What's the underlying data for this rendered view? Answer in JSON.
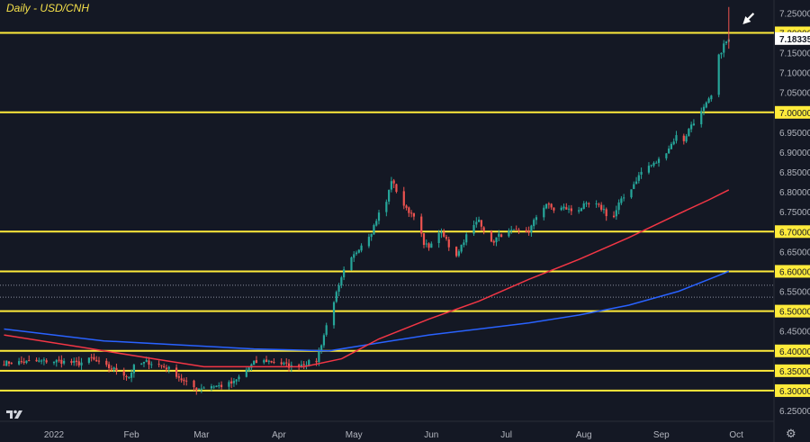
{
  "title": "Daily - USD/CNH",
  "colors": {
    "background": "#141824",
    "up": "#26a69a",
    "down": "#ef5350",
    "hline": "#ffeb3b",
    "ma_red": "#f23645",
    "ma_blue": "#2962ff",
    "axis_text": "#b2b5be",
    "price_tag": "#ffeb3b",
    "last_price_tag": "#ffffff"
  },
  "chart_data": {
    "type": "candlestick",
    "symbol": "USD/CNH",
    "timeframe": "Daily",
    "x_labels": [
      {
        "label": "2022",
        "day": 0
      },
      {
        "label": "Feb",
        "day": 31
      },
      {
        "label": "Mar",
        "day": 59
      },
      {
        "label": "Apr",
        "day": 90
      },
      {
        "label": "May",
        "day": 120
      },
      {
        "label": "Jun",
        "day": 151
      },
      {
        "label": "Jul",
        "day": 181
      },
      {
        "label": "Aug",
        "day": 212
      },
      {
        "label": "Sep",
        "day": 243
      },
      {
        "label": "Oct",
        "day": 273
      }
    ],
    "y_ticks": [
      "7.25000",
      "7.15000",
      "7.10000",
      "7.05000",
      "6.95000",
      "6.90000",
      "6.85000",
      "6.80000",
      "6.75000",
      "6.65000",
      "6.55000",
      "6.45000",
      "6.25000"
    ],
    "ylim": [
      6.25,
      7.25
    ],
    "horizontal_levels": [
      "7.20000",
      "7.00000",
      "6.70000",
      "6.60000",
      "6.50000",
      "6.40000",
      "6.35000",
      "6.30000"
    ],
    "dotted_levels": [
      6.565,
      6.535
    ],
    "last_price": "7.18335",
    "last_price_value": 7.18335,
    "anchor_closes": [
      [
        -20,
        6.37
      ],
      [
        -1,
        6.375
      ],
      [
        5,
        6.372
      ],
      [
        10,
        6.368
      ],
      [
        15,
        6.38
      ],
      [
        20,
        6.362
      ],
      [
        25,
        6.352
      ],
      [
        30,
        6.335
      ],
      [
        32,
        6.36
      ],
      [
        37,
        6.372
      ],
      [
        42,
        6.365
      ],
      [
        47,
        6.352
      ],
      [
        52,
        6.322
      ],
      [
        57,
        6.305
      ],
      [
        62,
        6.312
      ],
      [
        67,
        6.312
      ],
      [
        72,
        6.32
      ],
      [
        75,
        6.34
      ],
      [
        80,
        6.37
      ],
      [
        85,
        6.375
      ],
      [
        90,
        6.37
      ],
      [
        95,
        6.36
      ],
      [
        100,
        6.368
      ],
      [
        105,
        6.375
      ],
      [
        108,
        6.44
      ],
      [
        111,
        6.51
      ],
      [
        114,
        6.56
      ],
      [
        116,
        6.6
      ],
      [
        119,
        6.63
      ],
      [
        122,
        6.66
      ],
      [
        127,
        6.7
      ],
      [
        130,
        6.745
      ],
      [
        133,
        6.775
      ],
      [
        135,
        6.83
      ],
      [
        138,
        6.79
      ],
      [
        141,
        6.755
      ],
      [
        145,
        6.74
      ],
      [
        148,
        6.665
      ],
      [
        151,
        6.665
      ],
      [
        154,
        6.7
      ],
      [
        157,
        6.68
      ],
      [
        160,
        6.63
      ],
      [
        165,
        6.69
      ],
      [
        170,
        6.73
      ],
      [
        175,
        6.67
      ],
      [
        178,
        6.69
      ],
      [
        183,
        6.7
      ],
      [
        186,
        6.7
      ],
      [
        190,
        6.7
      ],
      [
        194,
        6.75
      ],
      [
        197,
        6.77
      ],
      [
        200,
        6.755
      ],
      [
        204,
        6.76
      ],
      [
        208,
        6.75
      ],
      [
        212,
        6.765
      ],
      [
        216,
        6.77
      ],
      [
        220,
        6.755
      ],
      [
        223,
        6.72
      ],
      [
        226,
        6.77
      ],
      [
        231,
        6.81
      ],
      [
        236,
        6.86
      ],
      [
        240,
        6.87
      ],
      [
        243,
        6.885
      ],
      [
        247,
        6.92
      ],
      [
        250,
        6.95
      ],
      [
        252,
        6.93
      ],
      [
        255,
        6.97
      ],
      [
        258,
        6.99
      ],
      [
        261,
        7.02
      ],
      [
        264,
        7.05
      ],
      [
        266,
        7.14
      ],
      [
        268,
        7.17
      ],
      [
        270,
        7.18335
      ]
    ],
    "extreme_high": 7.265,
    "ma_red": [
      [
        -20,
        6.44
      ],
      [
        10,
        6.41
      ],
      [
        40,
        6.38
      ],
      [
        60,
        6.36
      ],
      [
        80,
        6.36
      ],
      [
        100,
        6.36
      ],
      [
        115,
        6.38
      ],
      [
        130,
        6.43
      ],
      [
        150,
        6.48
      ],
      [
        170,
        6.525
      ],
      [
        190,
        6.58
      ],
      [
        210,
        6.63
      ],
      [
        230,
        6.685
      ],
      [
        250,
        6.745
      ],
      [
        262,
        6.78
      ],
      [
        270,
        6.805
      ]
    ],
    "ma_blue": [
      [
        -20,
        6.455
      ],
      [
        20,
        6.425
      ],
      [
        50,
        6.415
      ],
      [
        80,
        6.405
      ],
      [
        110,
        6.4
      ],
      [
        130,
        6.42
      ],
      [
        150,
        6.44
      ],
      [
        170,
        6.455
      ],
      [
        190,
        6.47
      ],
      [
        210,
        6.49
      ],
      [
        230,
        6.515
      ],
      [
        250,
        6.55
      ],
      [
        262,
        6.58
      ],
      [
        270,
        6.6
      ]
    ],
    "annotations": [
      {
        "type": "arrow",
        "day": 272,
        "value": 7.208,
        "direction": "down-left",
        "color": "#ffffff"
      }
    ]
  }
}
